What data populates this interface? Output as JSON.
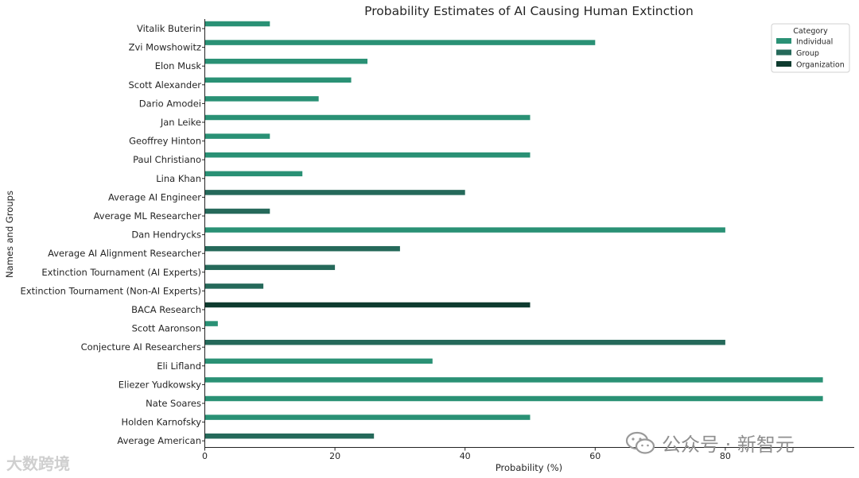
{
  "chart_data": {
    "type": "bar",
    "orientation": "horizontal",
    "title": "Probability Estimates of AI Causing Human Extinction",
    "xlabel": "Probability (%)",
    "ylabel": "Names and Groups",
    "xlim": [
      0,
      100
    ],
    "xticks": [
      0,
      20,
      40,
      60,
      80
    ],
    "grid": false,
    "legend": {
      "title": "Category",
      "placement": "top-right",
      "entries": [
        {
          "name": "Individual",
          "color": "#2a9175"
        },
        {
          "name": "Group",
          "color": "#25695a"
        },
        {
          "name": "Organization",
          "color": "#0e3b2f"
        }
      ]
    },
    "categories": [
      "Vitalik Buterin",
      "Zvi Mowshowitz",
      "Elon Musk",
      "Scott Alexander",
      "Dario Amodei",
      "Jan Leike",
      "Geoffrey Hinton",
      "Paul Christiano",
      "Lina Khan",
      "Average AI Engineer",
      "Average ML Researcher",
      "Dan Hendrycks",
      "Average AI Alignment Researcher",
      "Extinction Tournament (AI Experts)",
      "Extinction Tournament (Non-AI Experts)",
      "BACA Research",
      "Scott Aaronson",
      "Conjecture AI Researchers",
      "Eli Lifland",
      "Eliezer Yudkowsky",
      "Nate Soares",
      "Holden Karnofsky",
      "Average American"
    ],
    "series": [
      {
        "name": "Individual",
        "color": "#2a9175",
        "values": [
          10,
          60,
          25,
          22.5,
          17.5,
          50,
          10,
          50,
          15,
          null,
          null,
          80,
          null,
          null,
          null,
          null,
          2,
          null,
          35,
          95,
          95,
          50,
          null
        ]
      },
      {
        "name": "Group",
        "color": "#25695a",
        "values": [
          null,
          null,
          null,
          null,
          null,
          null,
          null,
          null,
          null,
          40,
          10,
          null,
          30,
          20,
          9,
          null,
          null,
          80,
          null,
          null,
          null,
          null,
          26
        ]
      },
      {
        "name": "Organization",
        "color": "#0e3b2f",
        "values": [
          null,
          null,
          null,
          null,
          null,
          null,
          null,
          null,
          null,
          null,
          null,
          null,
          null,
          null,
          null,
          50,
          null,
          null,
          null,
          null,
          null,
          null,
          null
        ]
      }
    ]
  },
  "watermarks": {
    "left": "大数跨境",
    "right": "公众号 · 新智元"
  }
}
